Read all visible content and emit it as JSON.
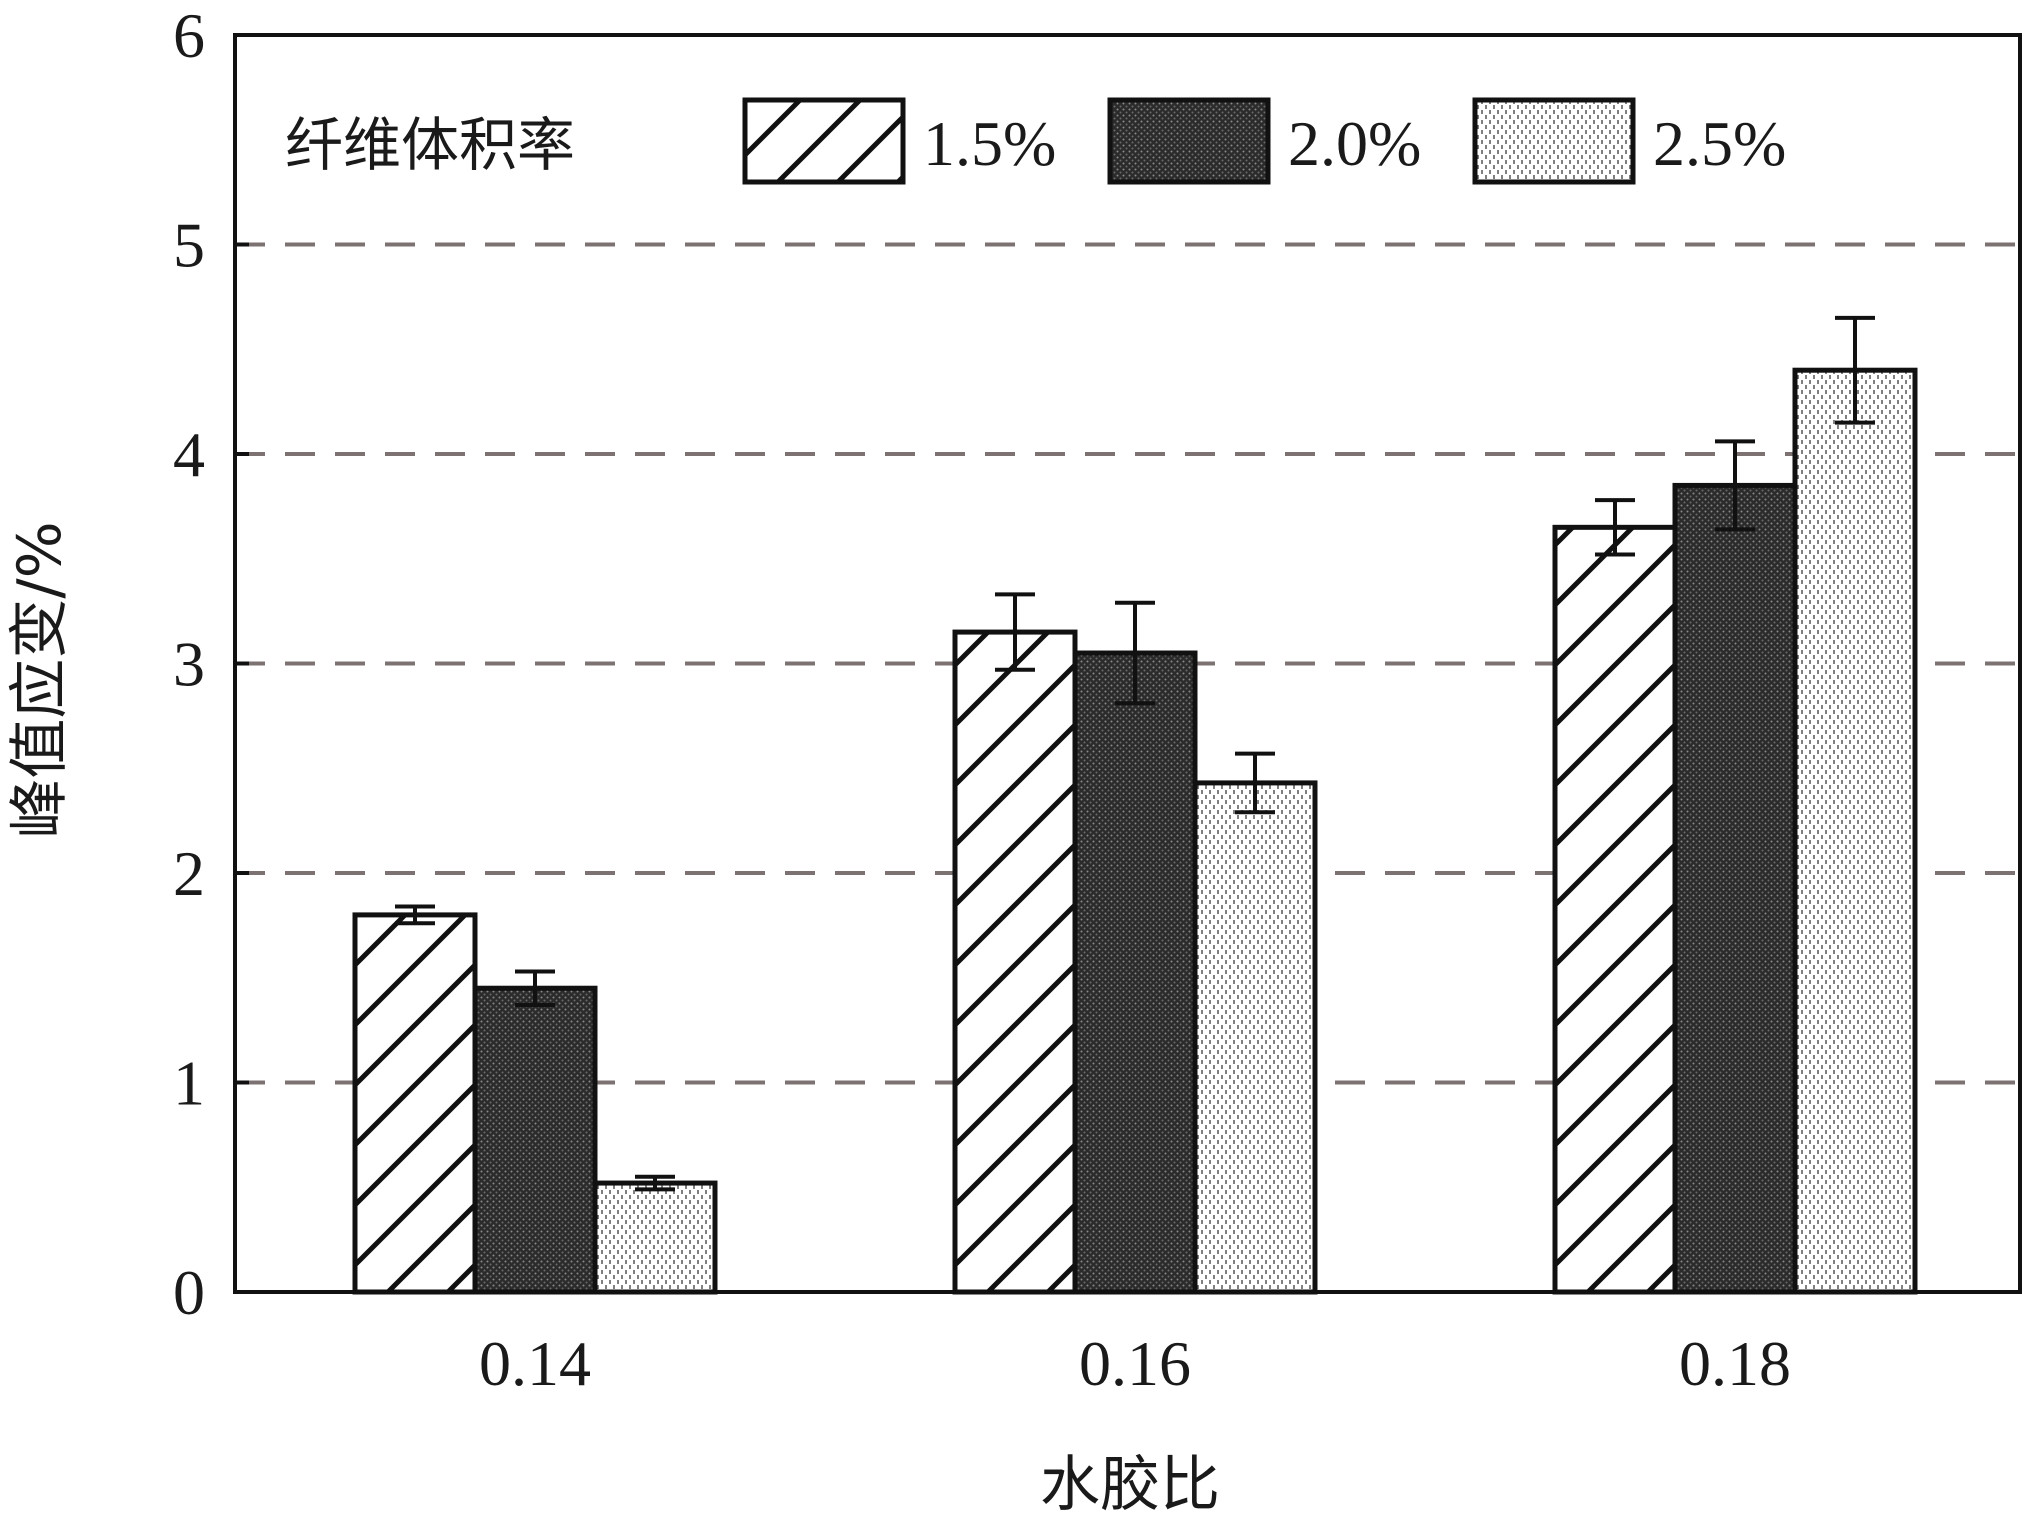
{
  "chart_data": {
    "type": "bar",
    "xlabel": "水胶比",
    "ylabel": "峰值应变/%",
    "categories": [
      "0.14",
      "0.16",
      "0.18"
    ],
    "ylim": [
      0,
      6
    ],
    "yticks": [
      "0",
      "1",
      "2",
      "3",
      "4",
      "5",
      "6"
    ],
    "grid": "horizontal dashed lines at y = 1, 2, 3, 4, 5",
    "legend": {
      "title": "纤维体积率",
      "placement": "top-left"
    },
    "series": [
      {
        "name": "1.5%",
        "pattern": "diagonal-hatch",
        "values": [
          1.8,
          3.15,
          3.65
        ],
        "errors": [
          0.04,
          0.18,
          0.13
        ]
      },
      {
        "name": "2.0%",
        "pattern": "dark-dotted",
        "values": [
          1.45,
          3.05,
          3.85
        ],
        "errors": [
          0.08,
          0.24,
          0.21
        ]
      },
      {
        "name": "2.5%",
        "pattern": "light-dotted",
        "values": [
          0.52,
          2.43,
          4.4
        ],
        "errors": [
          0.03,
          0.14,
          0.25
        ]
      }
    ],
    "colors": {
      "bar_stroke": "#111111",
      "grid": "#7d7272",
      "dark_fill": "#3a3a3a",
      "light_fill": "#f4f4f4"
    }
  }
}
